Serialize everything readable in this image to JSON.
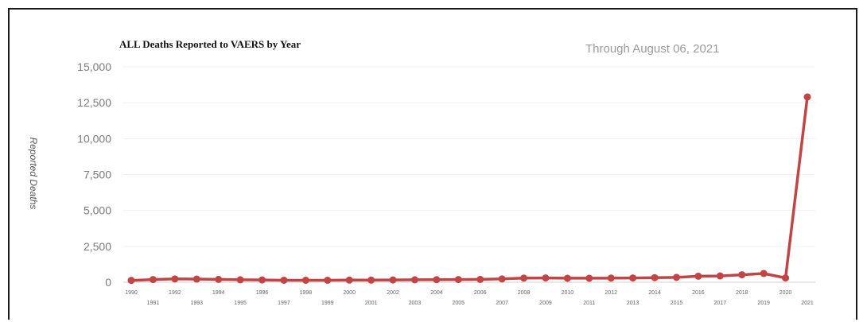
{
  "chart_data": {
    "type": "line",
    "title": "ALL Deaths Reported to VAERS by Year",
    "subtitle": "Through August 06, 2021",
    "ylabel": "Reported Deaths",
    "xlabel": "",
    "ylim": [
      0,
      15000
    ],
    "y_ticks": [
      "0",
      "2,500",
      "5,000",
      "7,500",
      "10,000",
      "12,500",
      "15,000"
    ],
    "y_tick_values": [
      0,
      2500,
      5000,
      7500,
      10000,
      12500,
      15000
    ],
    "x": [
      "1990",
      "1991",
      "1992",
      "1993",
      "1994",
      "1995",
      "1996",
      "1997",
      "1998",
      "1999",
      "2000",
      "2001",
      "2002",
      "2003",
      "2004",
      "2005",
      "2006",
      "2007",
      "2008",
      "2009",
      "2010",
      "2011",
      "2012",
      "2013",
      "2014",
      "2015",
      "2016",
      "2017",
      "2018",
      "2019",
      "2020",
      "2021"
    ],
    "x_tick_labels": [
      "1990",
      "1991",
      "1992",
      "1993",
      "1994",
      "1995",
      "1996",
      "1997",
      "1998",
      "1999",
      "2000",
      "2001",
      "2002",
      "2003",
      "2004",
      "2005",
      "2006",
      "2007",
      "2008",
      "2009",
      "2010",
      "2011",
      "2012",
      "2013",
      "2014",
      "2015",
      "2016",
      "2017",
      "2018",
      "2019",
      "2020",
      "2021"
    ],
    "series": [
      {
        "values": [
          130,
          190,
          230,
          220,
          200,
          170,
          160,
          140,
          140,
          140,
          150,
          150,
          160,
          170,
          180,
          190,
          200,
          230,
          290,
          300,
          280,
          280,
          290,
          300,
          320,
          340,
          420,
          440,
          520,
          610,
          300,
          12900
        ],
        "color": "#c24545"
      }
    ],
    "grid": true
  }
}
